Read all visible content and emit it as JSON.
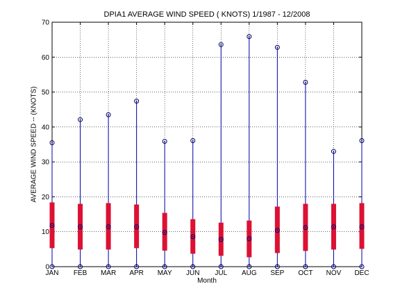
{
  "chart_data": {
    "type": "box",
    "title": "DPIA1  AVERAGE WIND SPEED ( KNOTS) 1/1987 - 12/2008",
    "xlabel": "Month",
    "ylabel": "AVERAGE WIND SPEED -- (KNOTS)",
    "categories": [
      "JAN",
      "FEB",
      "MAR",
      "APR",
      "MAY",
      "JUN",
      "JUL",
      "AUG",
      "SEP",
      "OCT",
      "NOV",
      "DEC"
    ],
    "yticks": [
      0,
      10,
      20,
      30,
      40,
      50,
      60,
      70
    ],
    "ylim": [
      0,
      70
    ],
    "grid": true,
    "min": [
      0,
      0,
      0,
      0,
      0,
      0,
      0,
      0,
      0,
      0,
      0,
      0
    ],
    "q1": [
      5.3,
      4.9,
      4.9,
      5.3,
      4.6,
      3.7,
      3.1,
      2.7,
      3.9,
      4.5,
      4.9,
      5.1
    ],
    "median": [
      11.8,
      11.4,
      11.4,
      11.4,
      9.8,
      8.6,
      7.8,
      8.0,
      10.4,
      11.2,
      11.4,
      11.4
    ],
    "q3": [
      18.4,
      18.0,
      18.2,
      17.8,
      15.4,
      13.6,
      12.6,
      13.2,
      17.2,
      18.0,
      18.0,
      18.2
    ],
    "max": [
      35.5,
      42.1,
      43.5,
      47.4,
      35.9,
      36.1,
      63.6,
      65.9,
      62.8,
      52.8,
      33.0,
      36.1
    ],
    "colors": {
      "whisker": "#0000aa",
      "box": "#dd1133",
      "marker": "#000066"
    }
  }
}
